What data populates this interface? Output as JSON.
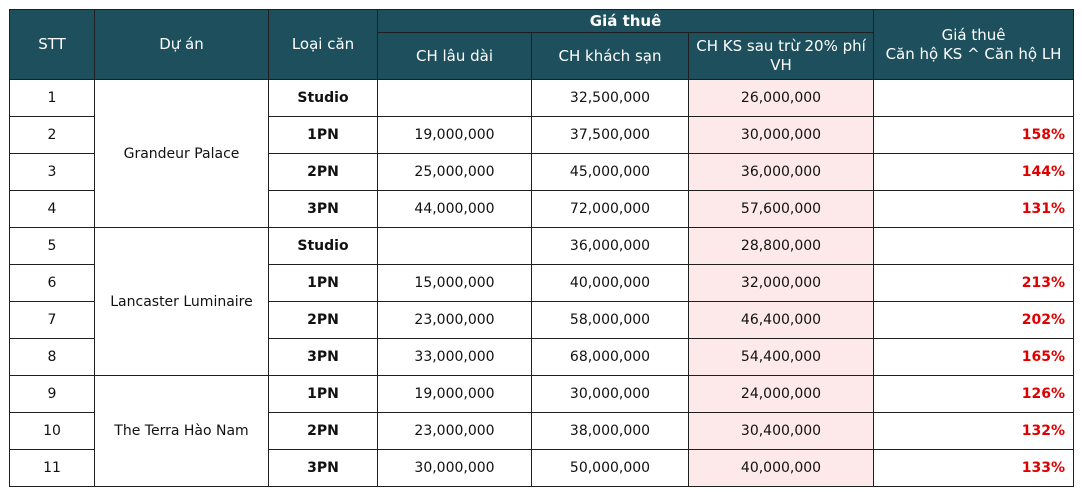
{
  "headers": {
    "stt": "STT",
    "project": "Dự án",
    "type": "Loại căn",
    "rent_group": "Giá thuê",
    "long_term": "CH lâu dài",
    "hotel": "CH khách sạn",
    "hotel_after": "CH KS sau trừ 20% phí VH",
    "ratio_line1": "Giá thuê",
    "ratio_line2": "Căn hộ KS ^ Căn hộ LH"
  },
  "projects": [
    "Grandeur Palace",
    "Lancaster Luminaire",
    "The Terra Hào Nam"
  ],
  "rows": [
    {
      "stt": "1",
      "type": "Studio",
      "long": "",
      "hotel": "32,500,000",
      "after": "26,000,000",
      "ratio": ""
    },
    {
      "stt": "2",
      "type": "1PN",
      "long": "19,000,000",
      "hotel": "37,500,000",
      "after": "30,000,000",
      "ratio": "158%"
    },
    {
      "stt": "3",
      "type": "2PN",
      "long": "25,000,000",
      "hotel": "45,000,000",
      "after": "36,000,000",
      "ratio": "144%"
    },
    {
      "stt": "4",
      "type": "3PN",
      "long": "44,000,000",
      "hotel": "72,000,000",
      "after": "57,600,000",
      "ratio": "131%"
    },
    {
      "stt": "5",
      "type": "Studio",
      "long": "",
      "hotel": "36,000,000",
      "after": "28,800,000",
      "ratio": ""
    },
    {
      "stt": "6",
      "type": "1PN",
      "long": "15,000,000",
      "hotel": "40,000,000",
      "after": "32,000,000",
      "ratio": "213%"
    },
    {
      "stt": "7",
      "type": "2PN",
      "long": "23,000,000",
      "hotel": "58,000,000",
      "after": "46,400,000",
      "ratio": "202%"
    },
    {
      "stt": "8",
      "type": "3PN",
      "long": "33,000,000",
      "hotel": "68,000,000",
      "after": "54,400,000",
      "ratio": "165%"
    },
    {
      "stt": "9",
      "type": "1PN",
      "long": "19,000,000",
      "hotel": "30,000,000",
      "after": "24,000,000",
      "ratio": "126%"
    },
    {
      "stt": "10",
      "type": "2PN",
      "long": "23,000,000",
      "hotel": "38,000,000",
      "after": "30,400,000",
      "ratio": "132%"
    },
    {
      "stt": "11",
      "type": "3PN",
      "long": "30,000,000",
      "hotel": "50,000,000",
      "after": "40,000,000",
      "ratio": "133%"
    }
  ],
  "colors": {
    "header_bg": "#1d4f5c",
    "highlight_bg": "#fde9e9",
    "ratio_text": "#e00000"
  }
}
